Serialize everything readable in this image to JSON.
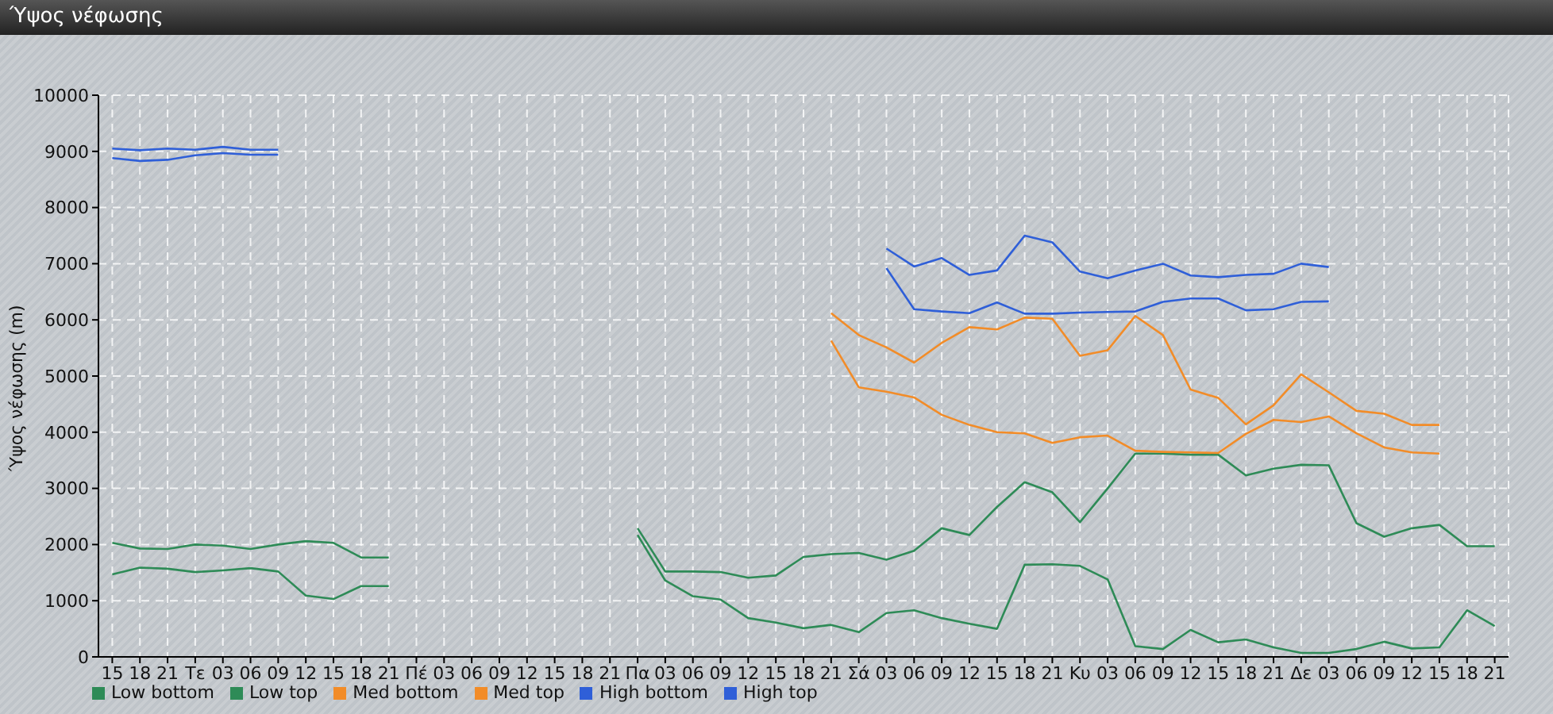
{
  "chart_data": {
    "type": "line",
    "title": "Ύψος νέφωσης",
    "ylabel": "Ύψος νέφωσης (m)",
    "categories": [
      "15",
      "18",
      "21",
      "Τε",
      "03",
      "06",
      "09",
      "12",
      "15",
      "18",
      "21",
      "Πέ",
      "03",
      "06",
      "09",
      "12",
      "15",
      "18",
      "21",
      "Πα",
      "03",
      "06",
      "09",
      "12",
      "15",
      "18",
      "21",
      "Σά",
      "03",
      "06",
      "09",
      "12",
      "15",
      "18",
      "21",
      "Κυ",
      "03",
      "06",
      "09",
      "12",
      "15",
      "18",
      "21",
      "Δε",
      "03",
      "06",
      "09",
      "12",
      "15",
      "18",
      "21"
    ],
    "ylim": [
      0,
      10000
    ],
    "yticks": [
      0,
      1000,
      2000,
      3000,
      4000,
      5000,
      6000,
      7000,
      8000,
      9000,
      10000
    ],
    "grid": true,
    "legend": "bottom left",
    "series": [
      {
        "name": "Low bottom",
        "color": "#2e8b57",
        "values": [
          1470,
          1590,
          1570,
          1510,
          1540,
          1580,
          1520,
          1090,
          1030,
          1260,
          1260,
          null,
          null,
          null,
          null,
          null,
          null,
          null,
          null,
          2170,
          1360,
          1080,
          1020,
          690,
          610,
          510,
          570,
          440,
          780,
          830,
          690,
          590,
          500,
          1640,
          1650,
          1620,
          1380,
          190,
          140,
          480,
          260,
          310,
          170,
          70,
          70,
          140,
          270,
          150,
          170,
          830,
          550
        ]
      },
      {
        "name": "Low top",
        "color": "#2e8b57",
        "values": [
          2030,
          1930,
          1920,
          2000,
          1980,
          1920,
          2000,
          2060,
          2030,
          1770,
          1770,
          null,
          null,
          null,
          null,
          null,
          null,
          null,
          null,
          2290,
          1520,
          1520,
          1510,
          1410,
          1450,
          1780,
          1830,
          1850,
          1730,
          1890,
          2290,
          2170,
          2670,
          3110,
          2930,
          2400,
          3000,
          3620,
          3620,
          3600,
          3600,
          3230,
          3350,
          3420,
          3410,
          2380,
          2140,
          2290,
          2350,
          1970,
          1970
        ]
      },
      {
        "name": "Med bottom",
        "color": "#f28c28",
        "values": [
          null,
          null,
          null,
          null,
          null,
          null,
          null,
          null,
          null,
          null,
          null,
          null,
          null,
          null,
          null,
          null,
          null,
          null,
          null,
          null,
          null,
          null,
          null,
          null,
          null,
          null,
          5630,
          4800,
          4720,
          4620,
          4310,
          4130,
          4000,
          3980,
          3810,
          3910,
          3940,
          3670,
          3650,
          3640,
          3630,
          3970,
          4220,
          4180,
          4280,
          3980,
          3730,
          3640,
          3620,
          null,
          null
        ]
      },
      {
        "name": "Med top",
        "color": "#f28c28",
        "values": [
          null,
          null,
          null,
          null,
          null,
          null,
          null,
          null,
          null,
          null,
          null,
          null,
          null,
          null,
          null,
          null,
          null,
          null,
          null,
          null,
          null,
          null,
          null,
          null,
          null,
          null,
          6120,
          5730,
          5510,
          5240,
          5590,
          5870,
          5830,
          6040,
          6020,
          5360,
          5460,
          6070,
          5730,
          4760,
          4610,
          4140,
          4480,
          5030,
          4710,
          4380,
          4330,
          4130,
          4130,
          null,
          null
        ]
      },
      {
        "name": "High bottom",
        "color": "#2f5fd8",
        "values": [
          8880,
          8830,
          8850,
          8930,
          8970,
          8940,
          8940,
          null,
          null,
          null,
          null,
          null,
          null,
          null,
          null,
          null,
          null,
          null,
          null,
          null,
          null,
          null,
          null,
          null,
          null,
          null,
          null,
          null,
          6920,
          6190,
          6150,
          6120,
          6310,
          6110,
          6110,
          6130,
          6140,
          6150,
          6320,
          6380,
          6380,
          6170,
          6190,
          6320,
          6330,
          null,
          null,
          null,
          null,
          null,
          null
        ]
      },
      {
        "name": "High top",
        "color": "#2f5fd8",
        "values": [
          9050,
          9020,
          9050,
          9030,
          9080,
          9030,
          9030,
          null,
          null,
          null,
          null,
          null,
          null,
          null,
          null,
          null,
          null,
          null,
          null,
          null,
          null,
          null,
          null,
          null,
          null,
          null,
          null,
          null,
          7270,
          6950,
          7100,
          6800,
          6880,
          7500,
          7380,
          6860,
          6740,
          6880,
          7000,
          6790,
          6760,
          6800,
          6820,
          7000,
          6940,
          null,
          null,
          null,
          null,
          null,
          null
        ]
      }
    ]
  }
}
